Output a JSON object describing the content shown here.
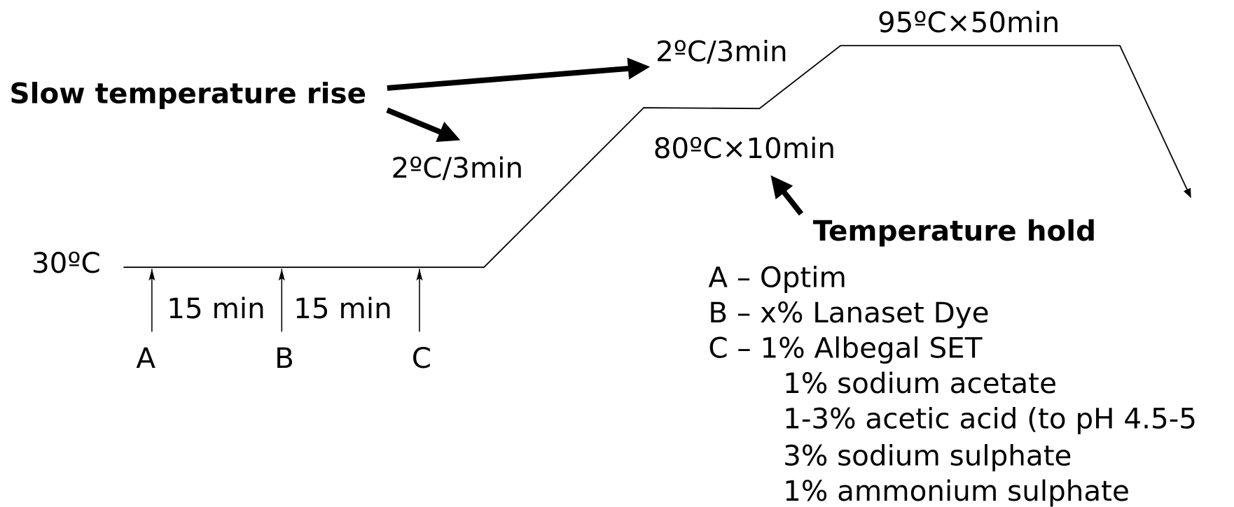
{
  "annotations": {
    "slow_rise": "Slow temperature rise",
    "rate_upper": "2ºC/3min",
    "rate_lower": "2ºC/3min",
    "hold_high": "95ºC×50min",
    "hold_mid": "80ºC×10min",
    "temperature_hold": "Temperature hold",
    "start_temp": "30ºC"
  },
  "intervals": [
    "15 min",
    "15 min"
  ],
  "additions": [
    "A",
    "B",
    "C"
  ],
  "legend": [
    "A – Optim",
    "B – x% Lanaset Dye",
    "C – 1% Albegal SET",
    "1% sodium acetate",
    "1-3% acetic acid (to pH 4.5-5",
    "3% sodium sulphate",
    "1% ammonium sulphate"
  ]
}
